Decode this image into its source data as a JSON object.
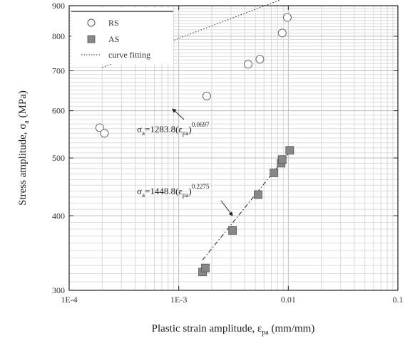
{
  "chart_data": {
    "type": "scatter",
    "xlabel": "Plastic strain amplitude, ε",
    "xlabel_sub": "pa",
    "xlabel_unit": " (mm/mm)",
    "ylabel": "Stress amplitude, σ",
    "ylabel_sub": "a",
    "ylabel_unit": " (MPa)",
    "xscale": "log",
    "yscale": "log",
    "xlim": [
      0.0001,
      0.1
    ],
    "ylim": [
      300,
      900
    ],
    "x_ticks": [
      {
        "value": 0.0001,
        "label": "1E-4"
      },
      {
        "value": 0.001,
        "label": "1E-3"
      },
      {
        "value": 0.01,
        "label": "0.01"
      },
      {
        "value": 0.1,
        "label": "0.1"
      }
    ],
    "y_ticks": [
      {
        "value": 300,
        "label": "300"
      },
      {
        "value": 400,
        "label": "400"
      },
      {
        "value": 500,
        "label": "500"
      },
      {
        "value": 600,
        "label": "600"
      },
      {
        "value": 700,
        "label": "700"
      },
      {
        "value": 800,
        "label": "800"
      },
      {
        "value": 900,
        "label": "900"
      }
    ],
    "grid": true,
    "legend_position": "top-left",
    "legend": [
      {
        "label": "RS",
        "marker": "open-circle"
      },
      {
        "label": "AS",
        "marker": "filled-square"
      },
      {
        "label": "curve fitting",
        "marker": "dotted-line"
      }
    ],
    "series": [
      {
        "name": "RS",
        "marker": "open-circle",
        "points": [
          {
            "x": 0.00019,
            "y": 562
          },
          {
            "x": 0.00021,
            "y": 550
          },
          {
            "x": 0.0018,
            "y": 635
          },
          {
            "x": 0.0043,
            "y": 718
          },
          {
            "x": 0.0055,
            "y": 732
          },
          {
            "x": 0.0088,
            "y": 810
          },
          {
            "x": 0.0098,
            "y": 860
          }
        ]
      },
      {
        "name": "AS",
        "marker": "filled-square",
        "color": "#888888",
        "points": [
          {
            "x": 0.00165,
            "y": 322
          },
          {
            "x": 0.00175,
            "y": 327
          },
          {
            "x": 0.0031,
            "y": 378
          },
          {
            "x": 0.0053,
            "y": 434
          },
          {
            "x": 0.0074,
            "y": 472
          },
          {
            "x": 0.0086,
            "y": 490
          },
          {
            "x": 0.0088,
            "y": 497
          },
          {
            "x": 0.0103,
            "y": 515
          }
        ]
      }
    ],
    "fits": [
      {
        "series": "RS",
        "style": "dotted",
        "coef": 1283.8,
        "exponent": 0.0697,
        "x_range": [
          0.0002,
          0.0095
        ]
      },
      {
        "series": "AS",
        "style": "dash-dot",
        "coef": 1448.8,
        "exponent": 0.2275,
        "x_range": [
          0.00165,
          0.0105
        ]
      }
    ],
    "annotations": [
      {
        "base": "σ",
        "sub": "a",
        "eq": "=1283.8(ε",
        "sub2": "pa",
        "sup": "0.0697"
      },
      {
        "base": "σ",
        "sub": "a",
        "eq": "=1448.8(ε",
        "sub2": "pa",
        "sup": "0.2275"
      }
    ]
  }
}
